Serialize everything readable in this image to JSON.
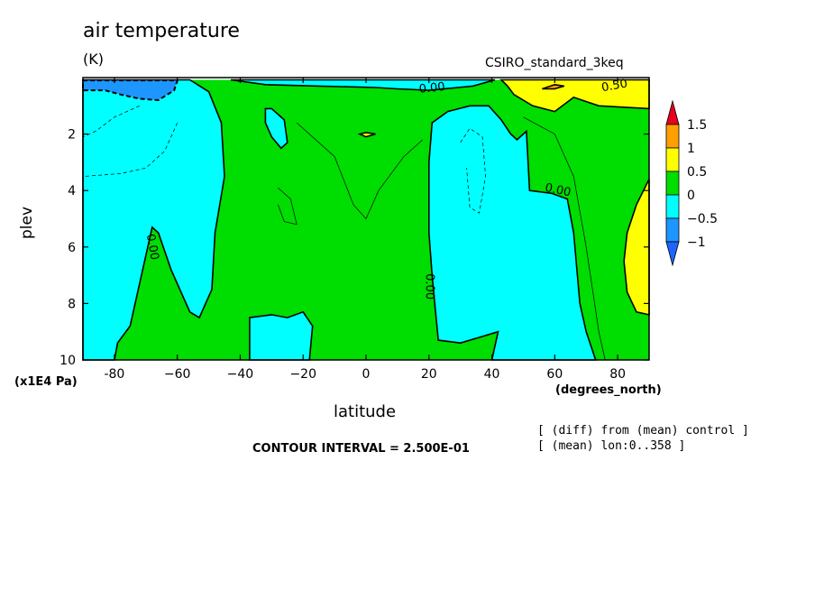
{
  "chart_data": {
    "type": "heatmap",
    "title": "air temperature",
    "units": "(K)",
    "model_label": "CSIRO_standard_3keq",
    "xlabel": "latitude",
    "x_units": "(degrees_north)",
    "ylabel": "plev",
    "y_units": "(x1E4 Pa)",
    "xlim": [
      -90,
      90
    ],
    "ylim": [
      10,
      0
    ],
    "x_ticks": [
      {
        "value": -80,
        "label": "-80"
      },
      {
        "value": -60,
        "label": "−60"
      },
      {
        "value": -40,
        "label": "−40"
      },
      {
        "value": -20,
        "label": "−20"
      },
      {
        "value": 0,
        "label": "0"
      },
      {
        "value": 20,
        "label": "20"
      },
      {
        "value": 40,
        "label": "40"
      },
      {
        "value": 60,
        "label": "60"
      },
      {
        "value": 80,
        "label": "80"
      }
    ],
    "y_ticks": [
      {
        "value": 2,
        "label": "2"
      },
      {
        "value": 4,
        "label": "4"
      },
      {
        "value": 6,
        "label": "6"
      },
      {
        "value": 8,
        "label": "8"
      },
      {
        "value": 10,
        "label": "10"
      }
    ],
    "colorbar": {
      "levels": [
        "1.5",
        "1",
        "0.5",
        "0",
        "−0.5",
        "−1"
      ],
      "colors": [
        "#e8001e",
        "#ff9f00",
        "#ffff00",
        "#00dd00",
        "#00ffff",
        "#1e96ff",
        "#1e64ff"
      ]
    },
    "regions": [
      {
        "name": "background",
        "range": "0 to 0.5",
        "color": "#00dd00",
        "points": [
          [
            -90,
            0.08
          ],
          [
            90,
            0.08
          ],
          [
            90,
            10
          ],
          [
            -90,
            10
          ]
        ]
      },
      {
        "name": "cyan-south-large",
        "range": "-0.5 to 0",
        "color": "#00ffff",
        "points": [
          [
            -90,
            0.08
          ],
          [
            -56,
            0.08
          ],
          [
            -50,
            0.5
          ],
          [
            -46,
            1.6
          ],
          [
            -45,
            3.5
          ],
          [
            -48,
            5.5
          ],
          [
            -49,
            7.5
          ],
          [
            -53,
            8.5
          ],
          [
            -56,
            8.3
          ],
          [
            -62,
            6.8
          ],
          [
            -66,
            5.5
          ],
          [
            -68,
            5.3
          ],
          [
            -71,
            6.8
          ],
          [
            -75,
            8.8
          ],
          [
            -79,
            9.4
          ],
          [
            -80,
            10
          ],
          [
            -90,
            10
          ]
        ]
      },
      {
        "name": "blue-south-top",
        "range": "-1 to -0.5",
        "color": "#1e96ff",
        "points": [
          [
            -90,
            0.1
          ],
          [
            -60,
            0.1
          ],
          [
            -61,
            0.45
          ],
          [
            -66,
            0.8
          ],
          [
            -72,
            0.75
          ],
          [
            -78,
            0.6
          ],
          [
            -83,
            0.45
          ],
          [
            -90,
            0.45
          ]
        ]
      },
      {
        "name": "cyan-top-center",
        "range": "-0.5 to 0",
        "color": "#00ffff",
        "points": [
          [
            -43,
            0.08
          ],
          [
            41,
            0.08
          ],
          [
            34,
            0.3
          ],
          [
            20,
            0.45
          ],
          [
            10,
            0.4
          ],
          [
            3,
            0.35
          ],
          [
            -15,
            0.3
          ],
          [
            -32,
            0.25
          ]
        ]
      },
      {
        "name": "cyan-south-blob",
        "range": "-0.5 to 0",
        "color": "#00ffff",
        "points": [
          [
            -32,
            1.1
          ],
          [
            -30,
            1.1
          ],
          [
            -26,
            1.5
          ],
          [
            -25,
            2.3
          ],
          [
            -27,
            2.5
          ],
          [
            -30,
            2.1
          ],
          [
            -32,
            1.6
          ]
        ]
      },
      {
        "name": "cyan-north-band",
        "range": "-0.5 to 0",
        "color": "#00ffff",
        "points": [
          [
            21,
            1.6
          ],
          [
            26,
            1.2
          ],
          [
            33,
            1.0
          ],
          [
            39,
            1.0
          ],
          [
            43,
            1.5
          ],
          [
            46,
            2.0
          ],
          [
            48,
            2.2
          ],
          [
            51,
            1.9
          ],
          [
            52,
            4.0
          ],
          [
            59,
            4.1
          ],
          [
            64,
            4.3
          ],
          [
            66,
            5.5
          ],
          [
            68,
            8.0
          ],
          [
            70,
            9.0
          ],
          [
            73,
            10
          ],
          [
            40,
            10
          ],
          [
            42,
            9.0
          ],
          [
            36,
            9.2
          ],
          [
            30,
            9.4
          ],
          [
            23,
            9.3
          ],
          [
            22,
            8.2
          ],
          [
            21,
            7.0
          ],
          [
            20,
            5.5
          ],
          [
            20,
            3.0
          ]
        ]
      },
      {
        "name": "cyan-bottom-southern",
        "range": "-0.5 to 0",
        "color": "#00ffff",
        "points": [
          [
            -37,
            8.5
          ],
          [
            -30,
            8.4
          ],
          [
            -25,
            8.5
          ],
          [
            -20,
            8.3
          ],
          [
            -17,
            8.8
          ],
          [
            -18,
            10
          ],
          [
            -37,
            10
          ]
        ]
      },
      {
        "name": "yellow-north-top",
        "range": "0.5 to 1",
        "color": "#ffff00",
        "points": [
          [
            43,
            0.08
          ],
          [
            90,
            0.08
          ],
          [
            90,
            1.1
          ],
          [
            74,
            1.0
          ],
          [
            66,
            0.7
          ],
          [
            60,
            1.2
          ],
          [
            53,
            1.0
          ],
          [
            47,
            0.6
          ],
          [
            45,
            0.3
          ]
        ]
      },
      {
        "name": "yellow-north-right",
        "range": "0.5 to 1",
        "color": "#ffff00",
        "points": [
          [
            90,
            3.6
          ],
          [
            86,
            4.5
          ],
          [
            83,
            5.5
          ],
          [
            82,
            6.5
          ],
          [
            83,
            7.6
          ],
          [
            86,
            8.3
          ],
          [
            90,
            8.4
          ]
        ]
      },
      {
        "name": "yellow-equator-sliver",
        "range": "0.5 to 1",
        "color": "#ffff00",
        "points": [
          [
            -2,
            2.0
          ],
          [
            0,
            1.95
          ],
          [
            3,
            2.0
          ],
          [
            0,
            2.1
          ]
        ]
      },
      {
        "name": "orange-north-top",
        "range": "1 to 1.5",
        "color": "#ff9f00",
        "points": [
          [
            56,
            0.4
          ],
          [
            60,
            0.25
          ],
          [
            63,
            0.3
          ],
          [
            60,
            0.4
          ]
        ]
      }
    ],
    "contour_labels": [
      {
        "x": 21,
        "y": 0.38,
        "label": "0.00",
        "rotate": -6
      },
      {
        "x": 79,
        "y": 0.3,
        "label": "0.50",
        "rotate": -10
      },
      {
        "x": 61,
        "y": 4.0,
        "label": "0.00",
        "rotate": 12
      },
      {
        "x": -68,
        "y": 6.0,
        "label": "0.00",
        "rotate": 80
      },
      {
        "x": 20,
        "y": 7.4,
        "label": "0.00",
        "rotate": 90
      }
    ]
  },
  "texts": {
    "contour_interval": "CONTOUR INTERVAL = 2.500E-01",
    "note_diff": "[ (diff) from (mean) control ]",
    "note_mean": "[ (mean) lon:0..358 ]"
  }
}
